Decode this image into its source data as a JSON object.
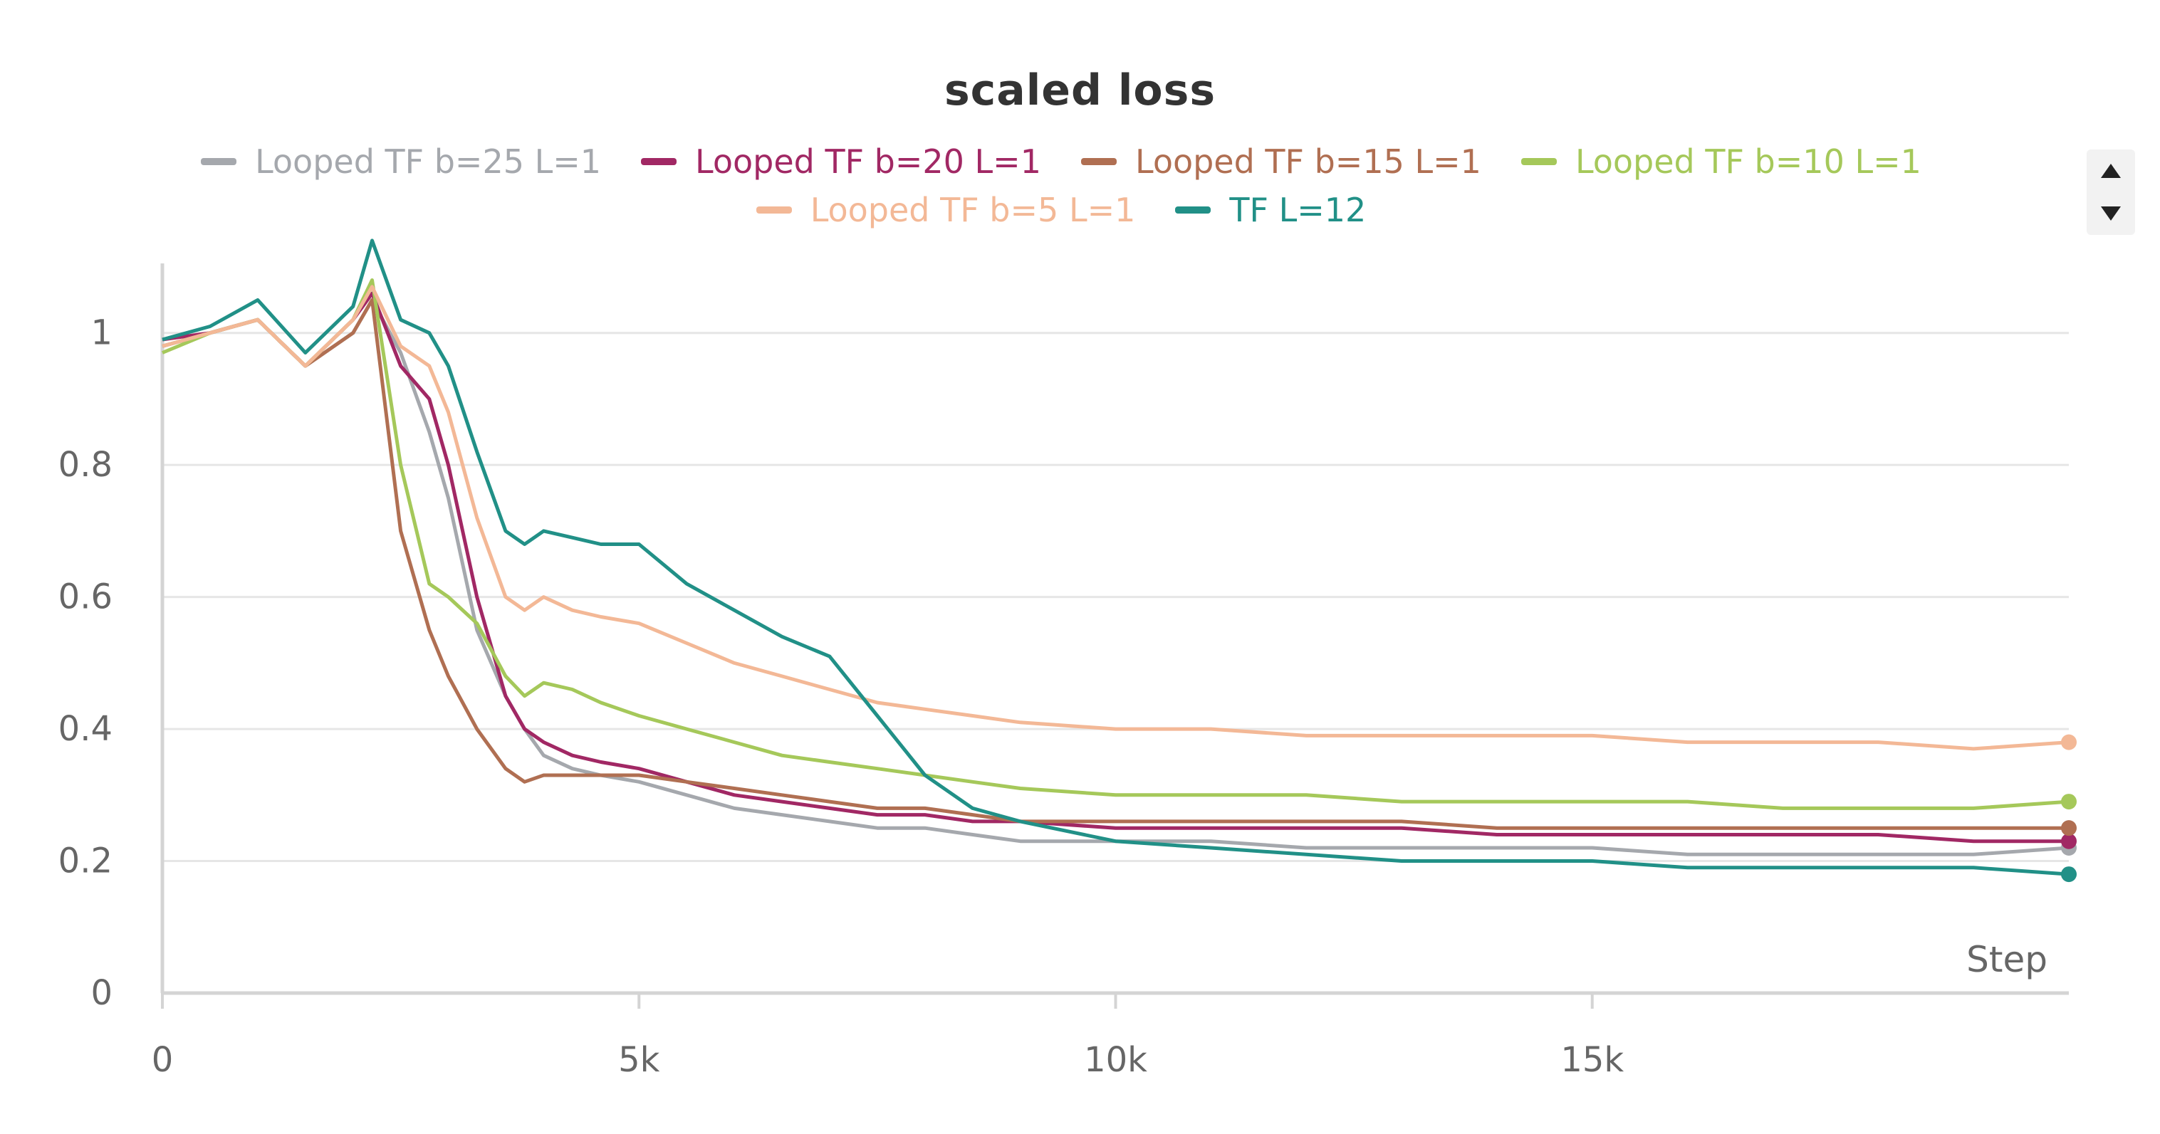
{
  "chart_data": {
    "type": "line",
    "title": "scaled loss",
    "xlabel": "Step",
    "ylabel": "",
    "xlim": [
      0,
      20000
    ],
    "ylim": [
      0,
      1.1
    ],
    "x_ticks": [
      0,
      5000,
      10000,
      15000
    ],
    "x_tick_labels": [
      "0",
      "5k",
      "10k",
      "15k"
    ],
    "y_ticks": [
      0,
      0.2,
      0.4,
      0.6,
      0.8,
      1
    ],
    "y_tick_labels": [
      "0",
      "0.2",
      "0.4",
      "0.6",
      "0.8",
      "1"
    ],
    "grid": true,
    "legend_placement": "top",
    "x": [
      0,
      500,
      1000,
      1500,
      2000,
      2200,
      2500,
      2800,
      3000,
      3300,
      3600,
      3800,
      4000,
      4300,
      4600,
      5000,
      5500,
      6000,
      6500,
      7000,
      7500,
      8000,
      8500,
      9000,
      10000,
      11000,
      12000,
      13000,
      14000,
      15000,
      16000,
      17000,
      18000,
      19000,
      20000
    ],
    "series": [
      {
        "name": "Looped TF b=25 L=1",
        "color": "#a5a8ad",
        "values": [
          0.98,
          1.0,
          1.02,
          0.95,
          1.0,
          1.05,
          0.97,
          0.85,
          0.75,
          0.55,
          0.45,
          0.4,
          0.36,
          0.34,
          0.33,
          0.32,
          0.3,
          0.28,
          0.27,
          0.26,
          0.25,
          0.25,
          0.24,
          0.23,
          0.23,
          0.23,
          0.22,
          0.22,
          0.22,
          0.22,
          0.21,
          0.21,
          0.21,
          0.21,
          0.22
        ]
      },
      {
        "name": "Looped TF b=20 L=1",
        "color": "#a12864",
        "values": [
          0.99,
          1.0,
          1.02,
          0.95,
          1.02,
          1.06,
          0.95,
          0.9,
          0.8,
          0.6,
          0.45,
          0.4,
          0.38,
          0.36,
          0.35,
          0.34,
          0.32,
          0.3,
          0.29,
          0.28,
          0.27,
          0.27,
          0.26,
          0.26,
          0.25,
          0.25,
          0.25,
          0.25,
          0.24,
          0.24,
          0.24,
          0.24,
          0.24,
          0.23,
          0.23
        ]
      },
      {
        "name": "Looped TF b=15 L=1",
        "color": "#b06f52",
        "values": [
          0.98,
          1.0,
          1.02,
          0.95,
          1.0,
          1.05,
          0.7,
          0.55,
          0.48,
          0.4,
          0.34,
          0.32,
          0.33,
          0.33,
          0.33,
          0.33,
          0.32,
          0.31,
          0.3,
          0.29,
          0.28,
          0.28,
          0.27,
          0.26,
          0.26,
          0.26,
          0.26,
          0.26,
          0.25,
          0.25,
          0.25,
          0.25,
          0.25,
          0.25,
          0.25
        ]
      },
      {
        "name": "Looped TF b=10 L=1",
        "color": "#a5c85a",
        "values": [
          0.97,
          1.0,
          1.02,
          0.95,
          1.02,
          1.08,
          0.8,
          0.62,
          0.6,
          0.56,
          0.48,
          0.45,
          0.47,
          0.46,
          0.44,
          0.42,
          0.4,
          0.38,
          0.36,
          0.35,
          0.34,
          0.33,
          0.32,
          0.31,
          0.3,
          0.3,
          0.3,
          0.29,
          0.29,
          0.29,
          0.29,
          0.28,
          0.28,
          0.28,
          0.29
        ]
      },
      {
        "name": "Looped TF b=5 L=1",
        "color": "#f3b896",
        "values": [
          0.98,
          1.0,
          1.02,
          0.95,
          1.02,
          1.07,
          0.98,
          0.95,
          0.88,
          0.72,
          0.6,
          0.58,
          0.6,
          0.58,
          0.57,
          0.56,
          0.53,
          0.5,
          0.48,
          0.46,
          0.44,
          0.43,
          0.42,
          0.41,
          0.4,
          0.4,
          0.39,
          0.39,
          0.39,
          0.39,
          0.38,
          0.38,
          0.38,
          0.37,
          0.38
        ]
      },
      {
        "name": "TF L=12",
        "color": "#219087",
        "values": [
          0.99,
          1.01,
          1.05,
          0.97,
          1.04,
          1.14,
          1.02,
          1.0,
          0.95,
          0.82,
          0.7,
          0.68,
          0.7,
          0.69,
          0.68,
          0.68,
          0.62,
          0.58,
          0.54,
          0.51,
          0.42,
          0.33,
          0.28,
          0.26,
          0.23,
          0.22,
          0.21,
          0.2,
          0.2,
          0.2,
          0.19,
          0.19,
          0.19,
          0.19,
          0.18
        ]
      }
    ]
  }
}
